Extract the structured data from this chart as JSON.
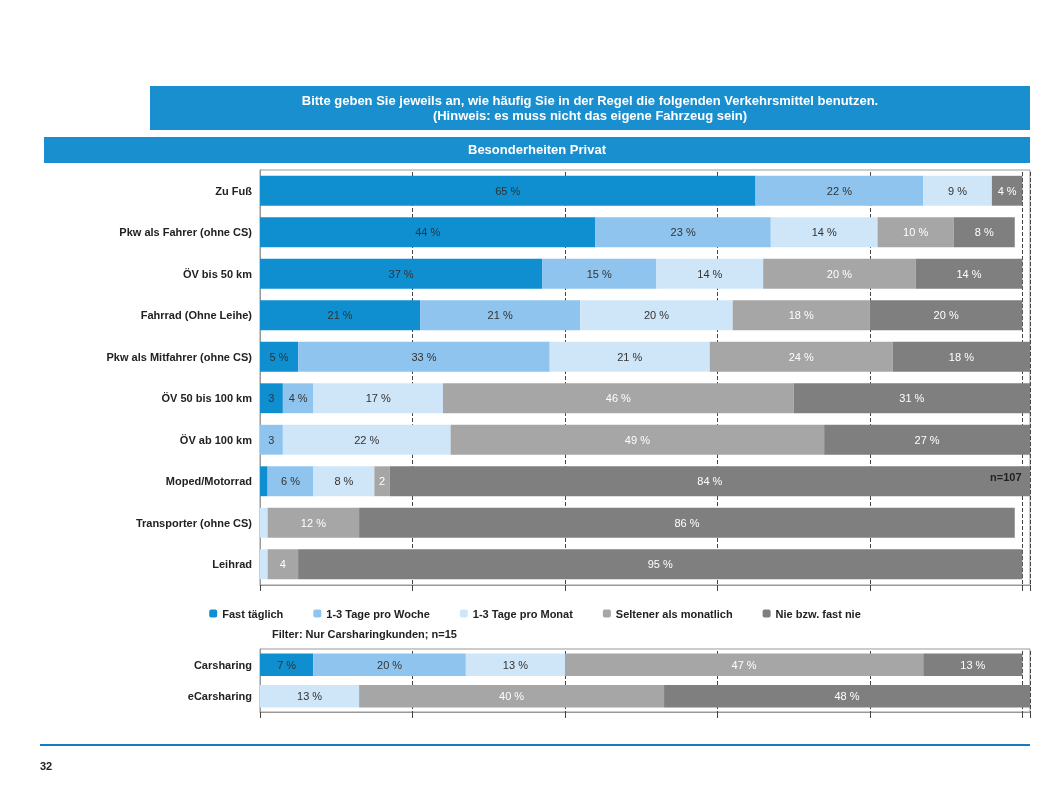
{
  "chart_data": [
    {
      "type": "bar",
      "orientation": "horizontal",
      "stacked": true,
      "title": "Bitte geben Sie jeweils an, wie häufig Sie in der Regel die folgenden Verkehrsmittel benutzen.\n(Hinweis: es muss nicht das eigene Fahrzeug sein)",
      "subtitle": "Besonderheiten Privat",
      "categories": [
        "Zu Fuß",
        "Pkw als Fahrer (ohne CS)",
        "ÖV bis 50 km",
        "Fahrrad (Ohne Leihe)",
        "Pkw als Mitfahrer (ohne CS)",
        "ÖV 50 bis 100 km",
        "ÖV ab 100 km",
        "Moped/Motorrad",
        "Transporter (ohne CS)",
        "Leihrad"
      ],
      "series": [
        {
          "name": "Fast täglich",
          "color": "#0f8fd0",
          "values": [
            65,
            44,
            37,
            21,
            5,
            3,
            null,
            1,
            null,
            null
          ],
          "value_labels": [
            "65 %",
            "44 %",
            "37 %",
            "21 %",
            "5 %",
            "3",
            null,
            null,
            null,
            null
          ]
        },
        {
          "name": "1-3 Tage pro Woche",
          "color": "#8fc4ee",
          "values": [
            22,
            23,
            15,
            21,
            33,
            4,
            3,
            6,
            null,
            null
          ],
          "value_labels": [
            "22 %",
            "23 %",
            "15 %",
            "21 %",
            "33 %",
            "4 %",
            "3",
            "6 %",
            null,
            null
          ]
        },
        {
          "name": "1-3 Tage pro Monat",
          "color": "#cfe6f8",
          "values": [
            9,
            14,
            14,
            20,
            21,
            17,
            22,
            8,
            1,
            1
          ],
          "value_labels": [
            "9 %",
            "14 %",
            "14 %",
            "20 %",
            "21 %",
            "17 %",
            "22 %",
            "8 %",
            null,
            null
          ]
        },
        {
          "name": "Seltener als monatlich",
          "color": "#a6a6a6",
          "values": [
            null,
            10,
            20,
            18,
            24,
            46,
            49,
            2,
            12,
            4
          ],
          "value_labels": [
            null,
            "10 %",
            "20 %",
            "18 %",
            "24 %",
            "46 %",
            "49 %",
            "2",
            "12 %",
            "4"
          ]
        },
        {
          "name": "Nie bzw. fast nie",
          "color": "#7f7f7f",
          "values": [
            4,
            8,
            14,
            20,
            18,
            31,
            27,
            84,
            86,
            95
          ],
          "value_labels": [
            "4 %",
            "8 %",
            "14 %",
            "20 %",
            "18 %",
            "31 %",
            "27 %",
            "84 %",
            "86 %",
            "95 %"
          ]
        }
      ],
      "xlim": [
        0,
        101
      ],
      "tick_labels": "y",
      "grid": "x",
      "legend": "bottom",
      "annotations": [
        "n=107"
      ]
    },
    {
      "type": "bar",
      "orientation": "horizontal",
      "stacked": true,
      "categories": [
        "Carsharing",
        "eCarsharing"
      ],
      "series": [
        {
          "color": "#0f8fd0",
          "values": [
            7,
            null
          ],
          "value_labels": [
            "7 %",
            null
          ]
        },
        {
          "color": "#8fc4ee",
          "values": [
            20,
            null
          ],
          "value_labels": [
            "20 %",
            null
          ]
        },
        {
          "color": "#cfe6f8",
          "values": [
            13,
            13
          ],
          "value_labels": [
            "13 %",
            "13 %"
          ]
        },
        {
          "color": "#a6a6a6",
          "values": [
            47,
            40
          ],
          "value_labels": [
            "47 %",
            "40 %"
          ]
        },
        {
          "color": "#7f7f7f",
          "values": [
            13,
            48
          ],
          "value_labels": [
            "13 %",
            "48 %"
          ]
        }
      ],
      "xlim": [
        0,
        101
      ],
      "tick_labels": "y",
      "grid": "x",
      "annotations": [
        "Filter: Nur Carsharingkunden; n=15",
        "32"
      ]
    }
  ]
}
